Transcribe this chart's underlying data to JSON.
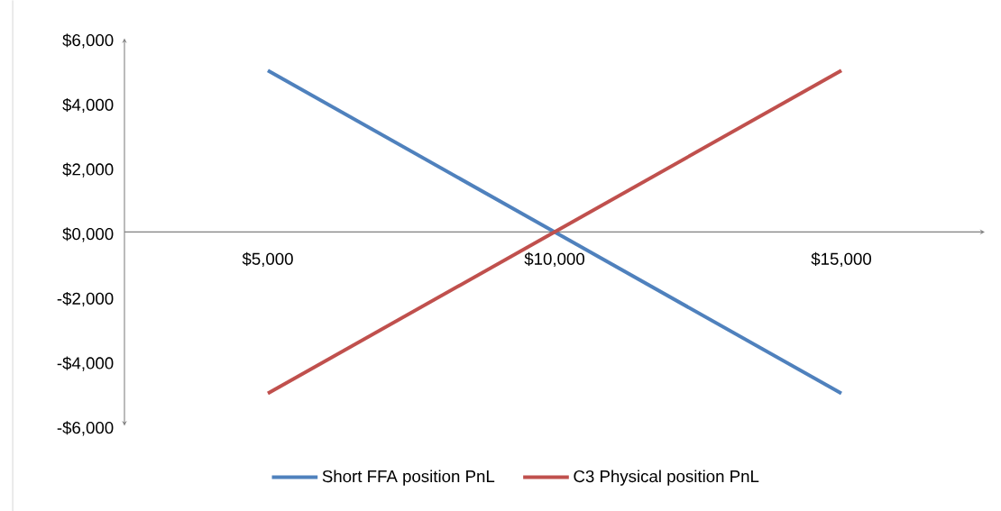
{
  "chart_data": {
    "type": "line",
    "categories": [
      "$5,000",
      "$10,000",
      "$15,000"
    ],
    "series": [
      {
        "name": "Short FFA position PnL",
        "color": "#4f81bd",
        "values": [
          5000,
          0,
          -5000
        ]
      },
      {
        "name": "C3 Physical position PnL",
        "color": "#c0504d",
        "values": [
          -5000,
          0,
          5000
        ]
      }
    ],
    "ylim": [
      -6000,
      6000
    ],
    "yticks": [
      {
        "value": -6000,
        "label": "-$6,000"
      },
      {
        "value": -4000,
        "label": "-$4,000"
      },
      {
        "value": -2000,
        "label": "-$2,000"
      },
      {
        "value": 0,
        "label": "$0,000"
      },
      {
        "value": 2000,
        "label": "$2,000"
      },
      {
        "value": 4000,
        "label": "$4,000"
      },
      {
        "value": 6000,
        "label": "$6,000"
      }
    ],
    "grid": false,
    "legend": "bottom",
    "marker": "none",
    "line_style": "solid"
  }
}
